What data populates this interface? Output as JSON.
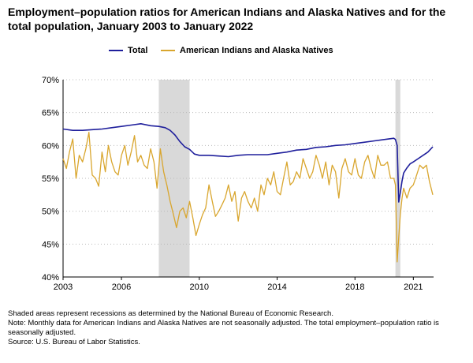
{
  "title": "Employment–population ratios for American Indians and Alaska Natives and for the total population, January 2003 to January 2022",
  "notes": [
    "Shaded areas represent recessions as determined by the National Bureau of Economic Research.",
    "Note: Monthly data for American Indians and Alaska Natives are not seasonally adjusted. The total employment–population ratio is seasonally adjusted.",
    "Source: U.S. Bureau of Labor Statistics."
  ],
  "colors": {
    "total": "#1f1f9c",
    "aian": "#d9a62e",
    "recession": "#d9d9d9",
    "grid": "#bbbbbb"
  },
  "chart_data": {
    "type": "line",
    "title": "Employment–population ratios for American Indians and Alaska Natives and for the total population, January 2003 to January 2022",
    "xlabel": "",
    "ylabel": "",
    "xlim": [
      2003.0,
      2022.04
    ],
    "ylim": [
      40,
      70
    ],
    "y_ticks": [
      40,
      45,
      50,
      55,
      60,
      65,
      70
    ],
    "y_tick_labels": [
      "40%",
      "45%",
      "50%",
      "55%",
      "60%",
      "65%",
      "70%"
    ],
    "x_ticks": [
      2003,
      2006,
      2010,
      2014,
      2018,
      2021
    ],
    "x_tick_labels": [
      "2003",
      "2006",
      "2010",
      "2014",
      "2018",
      "2021"
    ],
    "grid": "horizontal dotted",
    "legend_position": "top",
    "recessions": [
      [
        2007.92,
        2009.5
      ],
      [
        2020.08,
        2020.33
      ]
    ],
    "series": [
      {
        "name": "Total",
        "color": "#1f1f9c",
        "x": [
          2003.0,
          2003.5,
          2004.0,
          2004.5,
          2005.0,
          2005.5,
          2006.0,
          2006.5,
          2007.0,
          2007.5,
          2007.92,
          2008.25,
          2008.5,
          2008.75,
          2009.0,
          2009.25,
          2009.5,
          2009.75,
          2010.0,
          2010.5,
          2011.0,
          2011.5,
          2012.0,
          2012.5,
          2013.0,
          2013.5,
          2014.0,
          2014.5,
          2015.0,
          2015.5,
          2016.0,
          2016.5,
          2017.0,
          2017.5,
          2018.0,
          2018.5,
          2019.0,
          2019.5,
          2020.0,
          2020.08,
          2020.17,
          2020.25,
          2020.33,
          2020.42,
          2020.5,
          2020.67,
          2020.83,
          2021.0,
          2021.25,
          2021.5,
          2021.75,
          2022.0
        ],
        "y": [
          62.5,
          62.3,
          62.3,
          62.4,
          62.5,
          62.7,
          62.9,
          63.1,
          63.3,
          63.0,
          62.9,
          62.7,
          62.3,
          61.6,
          60.6,
          59.8,
          59.4,
          58.7,
          58.5,
          58.5,
          58.4,
          58.3,
          58.5,
          58.6,
          58.6,
          58.6,
          58.8,
          59.0,
          59.3,
          59.4,
          59.7,
          59.8,
          60.0,
          60.1,
          60.3,
          60.5,
          60.7,
          60.9,
          61.1,
          60.9,
          60.0,
          51.4,
          52.8,
          54.6,
          55.8,
          56.6,
          57.2,
          57.5,
          58.0,
          58.5,
          59.0,
          59.8
        ]
      },
      {
        "name": "American Indians and Alaska Natives",
        "color": "#d9a62e",
        "x": [
          2003.0,
          2003.17,
          2003.33,
          2003.5,
          2003.67,
          2003.83,
          2004.0,
          2004.17,
          2004.33,
          2004.5,
          2004.67,
          2004.83,
          2005.0,
          2005.17,
          2005.33,
          2005.5,
          2005.67,
          2005.83,
          2006.0,
          2006.17,
          2006.33,
          2006.5,
          2006.67,
          2006.83,
          2007.0,
          2007.17,
          2007.33,
          2007.5,
          2007.67,
          2007.83,
          2008.0,
          2008.17,
          2008.33,
          2008.5,
          2008.67,
          2008.83,
          2009.0,
          2009.17,
          2009.33,
          2009.5,
          2009.67,
          2009.83,
          2010.0,
          2010.17,
          2010.33,
          2010.5,
          2010.67,
          2010.83,
          2011.0,
          2011.17,
          2011.33,
          2011.5,
          2011.67,
          2011.83,
          2012.0,
          2012.17,
          2012.33,
          2012.5,
          2012.67,
          2012.83,
          2013.0,
          2013.17,
          2013.33,
          2013.5,
          2013.67,
          2013.83,
          2014.0,
          2014.17,
          2014.33,
          2014.5,
          2014.67,
          2014.83,
          2015.0,
          2015.17,
          2015.33,
          2015.5,
          2015.67,
          2015.83,
          2016.0,
          2016.17,
          2016.33,
          2016.5,
          2016.67,
          2016.83,
          2017.0,
          2017.17,
          2017.33,
          2017.5,
          2017.67,
          2017.83,
          2018.0,
          2018.17,
          2018.33,
          2018.5,
          2018.67,
          2018.83,
          2019.0,
          2019.17,
          2019.33,
          2019.5,
          2019.67,
          2019.83,
          2020.0,
          2020.08,
          2020.17,
          2020.25,
          2020.33,
          2020.42,
          2020.5,
          2020.67,
          2020.83,
          2021.0,
          2021.17,
          2021.33,
          2021.5,
          2021.67,
          2021.83,
          2022.0
        ],
        "y": [
          58.0,
          56.5,
          59.0,
          61.0,
          55.0,
          58.5,
          57.5,
          59.5,
          62.0,
          55.5,
          55.0,
          53.8,
          59.0,
          56.0,
          60.0,
          57.5,
          56.0,
          55.5,
          58.5,
          60.0,
          57.0,
          59.0,
          61.5,
          57.5,
          58.5,
          57.0,
          56.5,
          59.5,
          57.5,
          53.5,
          59.5,
          56.0,
          54.0,
          51.5,
          49.5,
          47.5,
          50.0,
          50.5,
          49.0,
          51.5,
          49.0,
          46.3,
          48.0,
          49.5,
          50.5,
          54.0,
          51.5,
          49.2,
          50.0,
          51.0,
          52.0,
          54.0,
          51.5,
          53.0,
          48.5,
          52.0,
          53.0,
          51.5,
          50.5,
          52.0,
          50.0,
          54.0,
          52.5,
          55.0,
          54.0,
          56.0,
          53.0,
          52.5,
          55.0,
          57.5,
          54.0,
          54.5,
          56.0,
          55.0,
          58.0,
          56.5,
          55.0,
          56.0,
          58.5,
          57.0,
          55.0,
          57.5,
          54.0,
          57.0,
          56.0,
          52.0,
          56.5,
          58.0,
          56.0,
          55.5,
          58.0,
          55.5,
          55.0,
          57.5,
          58.5,
          56.5,
          55.0,
          58.5,
          57.0,
          57.0,
          57.5,
          55.0,
          55.0,
          54.0,
          42.3,
          46.0,
          49.5,
          52.0,
          53.5,
          52.0,
          53.5,
          54.0,
          55.5,
          57.0,
          56.5,
          57.0,
          54.5,
          52.5
        ]
      }
    ]
  }
}
